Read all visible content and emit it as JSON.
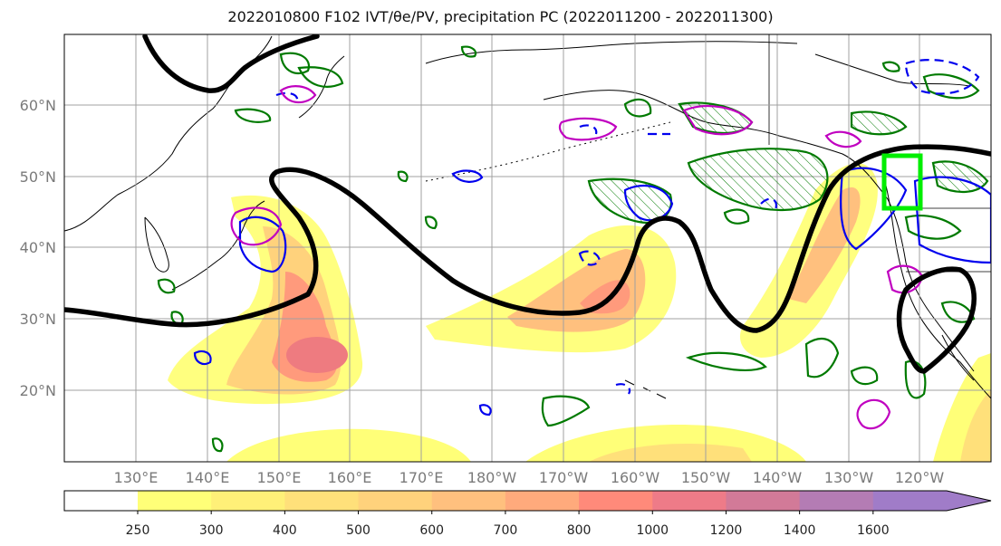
{
  "title": "2022010800 F102 IVT/θe/PV, precipitation PC (2022011200 - 2022011300)",
  "map": {
    "lat_labels": [
      "60°N",
      "50°N",
      "40°N",
      "30°N",
      "20°N"
    ],
    "lon_labels": [
      "130°E",
      "140°E",
      "150°E",
      "160°E",
      "170°E",
      "180°W",
      "170°W",
      "160°W",
      "150°W",
      "140°W",
      "130°W",
      "120°W"
    ]
  },
  "colorbar": {
    "levels": [
      "250",
      "300",
      "400",
      "500",
      "600",
      "700",
      "800",
      "1000",
      "1200",
      "1400",
      "1600"
    ],
    "colors": [
      "#ffff78",
      "#fff078",
      "#ffe07a",
      "#ffd27c",
      "#ffc07e",
      "#ffaa7c",
      "#ff8a7a",
      "#ee7b88",
      "#d27a98",
      "#b47cb4",
      "#a07cc8"
    ]
  },
  "colors": {
    "theta_e_contour": "#000000",
    "pv_positive": "#0000ee",
    "pv_negative": "#c000c0",
    "precip_pc": "#007a00",
    "highlight_box": "#00ee00",
    "grid": "#a0a0a0"
  }
}
